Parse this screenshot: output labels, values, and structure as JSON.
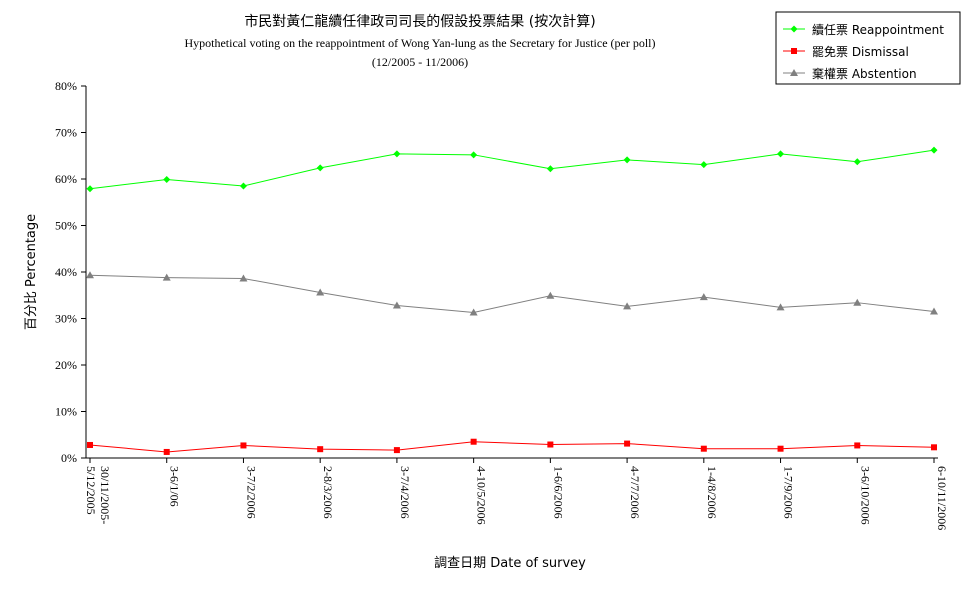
{
  "chart_data": {
    "type": "line",
    "title": "市民對黃仁龍續任律政司司長的假設投票結果 (按次計算)",
    "subtitle": "Hypothetical voting on the reappointment of Wong Yan-lung as the Secretary for Justice (per poll)",
    "period": "(12/2005 - 11/2006)",
    "xlabel": "調查日期 Date of survey",
    "ylabel": "百分比 Percentage",
    "ylim": [
      0,
      80
    ],
    "yticks": [
      "0%",
      "10%",
      "20%",
      "30%",
      "40%",
      "50%",
      "60%",
      "70%",
      "80%"
    ],
    "categories": [
      [
        "30/11/2005-",
        "5/12/2005"
      ],
      [
        "3-6/1/06"
      ],
      [
        "3-7/2/2006"
      ],
      [
        "2-8/3/2006"
      ],
      [
        "3-7/4/2006"
      ],
      [
        "4-10/5/2006"
      ],
      [
        "1-6/6/2006"
      ],
      [
        "4-7/7/2006"
      ],
      [
        "1-4/8/2006"
      ],
      [
        "1-7/9/2006"
      ],
      [
        "3-6/10/2006"
      ],
      [
        "6-10/11/2006"
      ]
    ],
    "legend_position": "top-right",
    "series": [
      {
        "name": "續任票 Reappointment",
        "color": "#00ff00",
        "marker": "diamond",
        "values": [
          57.9,
          59.9,
          58.5,
          62.4,
          65.4,
          65.2,
          62.2,
          64.1,
          63.1,
          65.4,
          63.7,
          66.2
        ]
      },
      {
        "name": "罷免票 Dismissal",
        "color": "#ff0000",
        "marker": "square",
        "values": [
          2.8,
          1.3,
          2.7,
          1.9,
          1.7,
          3.5,
          2.9,
          3.1,
          2.0,
          2.0,
          2.7,
          2.3
        ]
      },
      {
        "name": "棄權票 Abstention",
        "color": "#808080",
        "marker": "triangle",
        "values": [
          39.3,
          38.8,
          38.6,
          35.6,
          32.8,
          31.3,
          34.9,
          32.6,
          34.6,
          32.4,
          33.4,
          31.5
        ]
      }
    ]
  }
}
